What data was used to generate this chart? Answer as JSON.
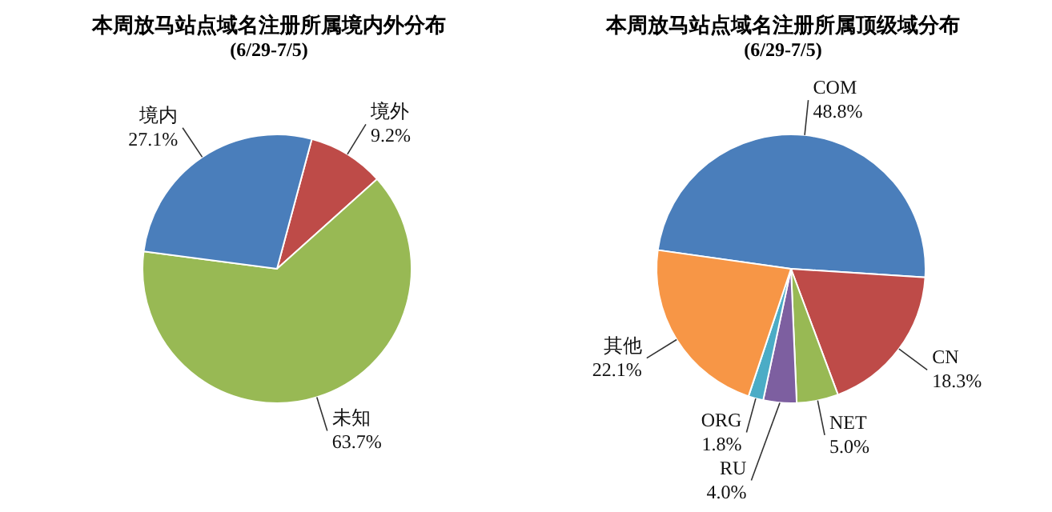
{
  "chart_data": [
    {
      "type": "pie",
      "title": "本周放马站点域名注册所属境内外分布",
      "subtitle": "(6/29-7/5)",
      "categories": [
        "境外",
        "未知",
        "境内"
      ],
      "values": [
        9.2,
        63.7,
        27.1
      ],
      "colors": [
        "#be4b48",
        "#98b954",
        "#4a7ebb"
      ],
      "value_labels": [
        "9.2%",
        "63.7%",
        "27.1%"
      ]
    },
    {
      "type": "pie",
      "title": "本周放马站点域名注册所属顶级域分布",
      "subtitle": "(6/29-7/5)",
      "categories": [
        "COM",
        "CN",
        "NET",
        "RU",
        "ORG",
        "其他"
      ],
      "values": [
        48.8,
        18.3,
        5.0,
        4.0,
        1.8,
        22.1
      ],
      "colors": [
        "#4a7ebb",
        "#be4b48",
        "#98b954",
        "#7d5fa0",
        "#4bacc6",
        "#f79646"
      ],
      "value_labels": [
        "48.8%",
        "18.3%",
        "5.0%",
        "4.0%",
        "1.8%",
        "22.1%"
      ]
    }
  ]
}
